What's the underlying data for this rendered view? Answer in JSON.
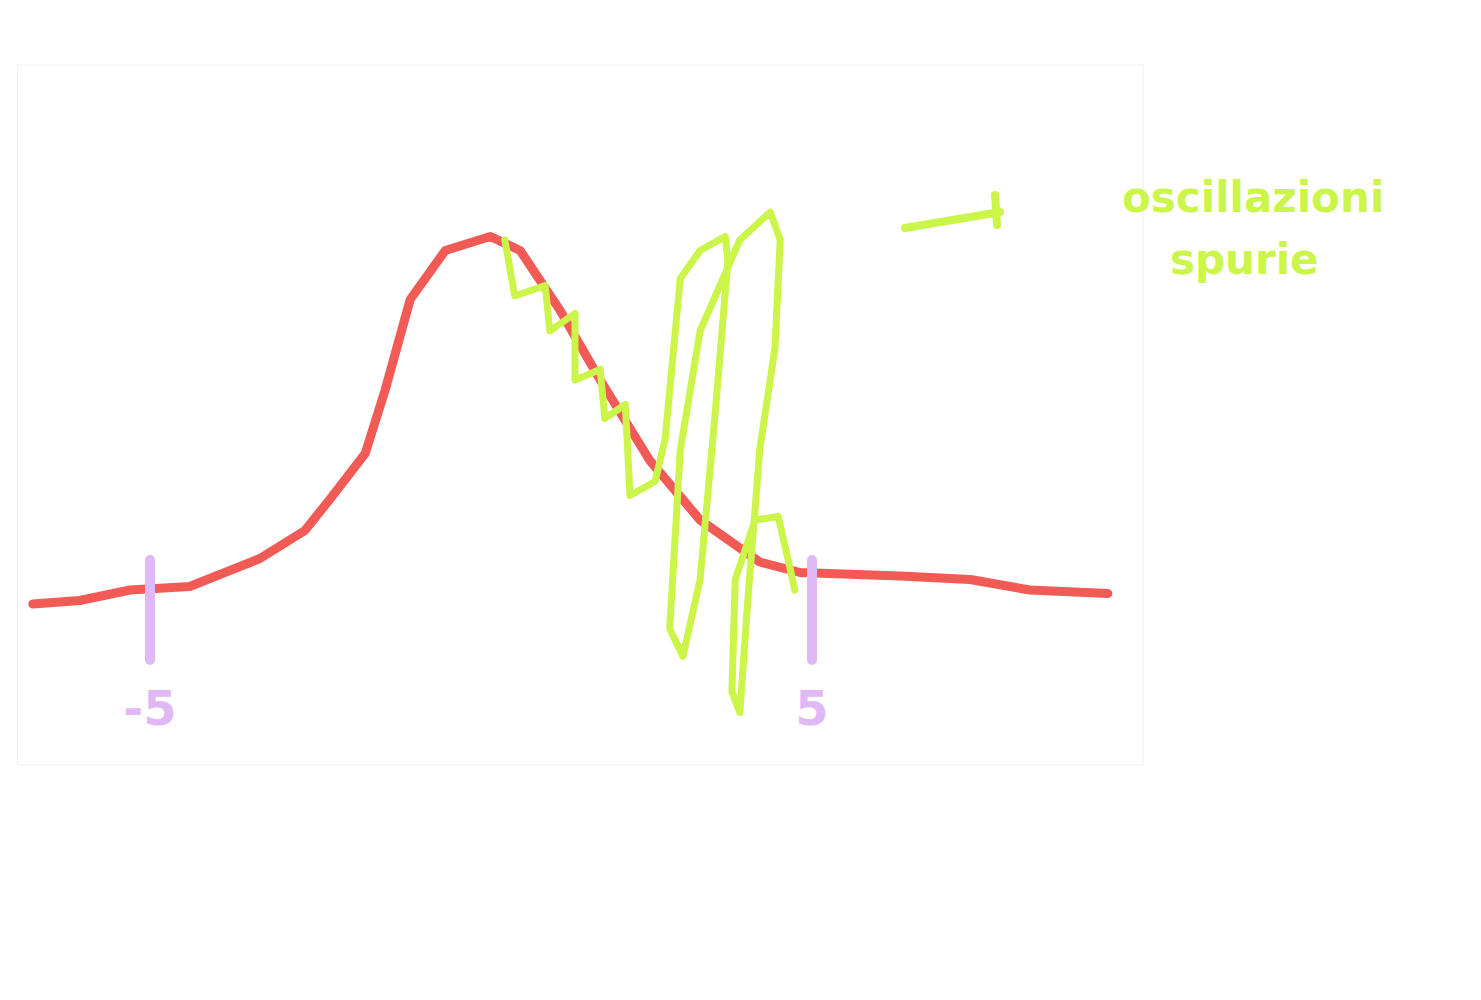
{
  "chart_data": {
    "type": "line",
    "annotations": [
      "oscillazioni spurie"
    ],
    "xlim": [
      -7,
      10
    ],
    "ylim": [
      -0.5,
      1.5
    ],
    "xticks": [
      -5,
      5
    ],
    "tick_labels": "x",
    "grid": false,
    "series": [
      {
        "color": "#f25b55",
        "line_style": "solid",
        "x": [
          -6.77,
          -6.06,
          -5.3,
          -4.4,
          -3.34,
          -2.66,
          -2.28,
          -1.75,
          -1.45,
          -1.07,
          -0.54,
          0.14,
          0.59,
          1.19,
          1.8,
          2.55,
          3.31,
          4.21,
          4.82,
          6.33,
          7.39,
          8.29,
          9.47
        ],
        "values": [
          -0.04,
          -0.03,
          0.0,
          0.01,
          0.09,
          0.17,
          0.26,
          0.39,
          0.57,
          0.83,
          0.97,
          1.01,
          0.97,
          0.8,
          0.6,
          0.37,
          0.2,
          0.08,
          0.05,
          0.04,
          0.03,
          0.0,
          -0.01
        ]
      },
      {
        "color": "#ccf54a",
        "line_style": "solid",
        "x": [
          0.36,
          0.51,
          0.97,
          1.04,
          1.42,
          1.42,
          1.8,
          1.87,
          2.18,
          2.25,
          2.63,
          2.78,
          3.01,
          3.31,
          3.69,
          3.73,
          3.53,
          3.31,
          3.05,
          2.85,
          3.01,
          3.31,
          3.91,
          4.37,
          4.52,
          4.44,
          4.21,
          4.03,
          3.91,
          3.79,
          3.84,
          4.14,
          4.49,
          4.67,
          4.74
        ],
        "values": [
          1.0,
          0.84,
          0.87,
          0.74,
          0.79,
          0.6,
          0.63,
          0.49,
          0.53,
          0.27,
          0.31,
          0.43,
          0.89,
          0.97,
          1.01,
          0.94,
          0.49,
          0.03,
          -0.19,
          -0.11,
          0.4,
          0.74,
          1.0,
          1.08,
          1.0,
          0.69,
          0.4,
          -0.03,
          -0.35,
          -0.29,
          0.03,
          0.2,
          0.21,
          0.06,
          0.0
        ]
      }
    ]
  }
}
